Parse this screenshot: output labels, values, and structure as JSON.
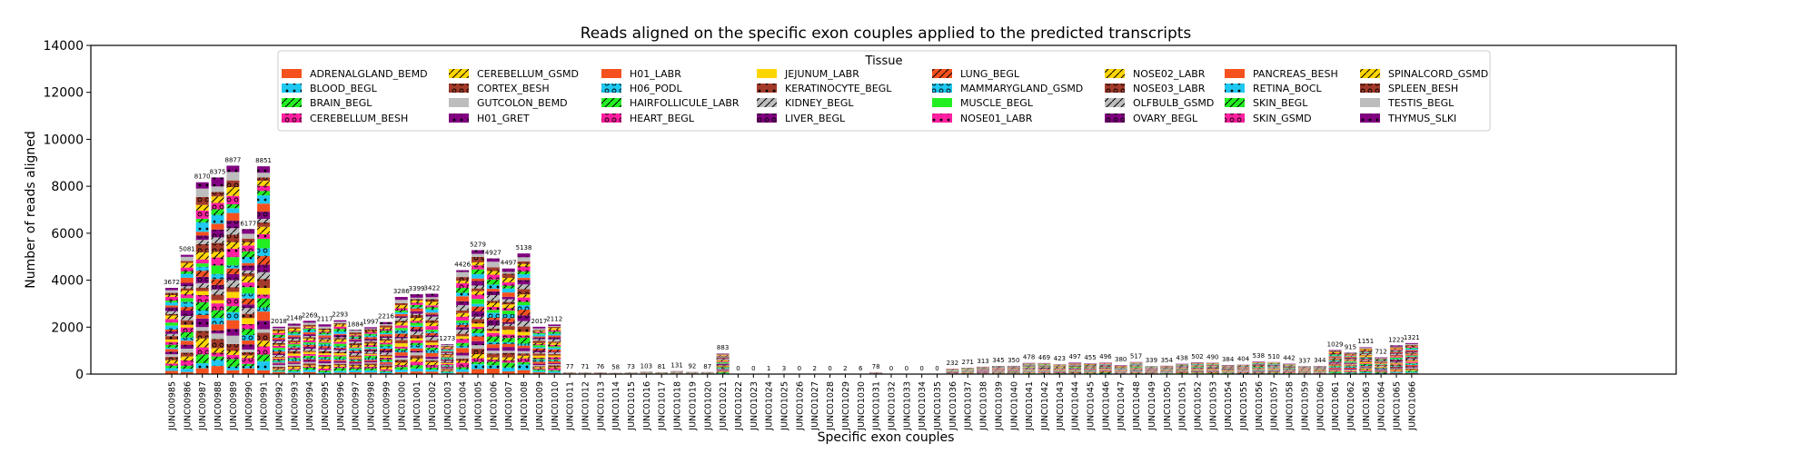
{
  "chart_data": {
    "type": "bar",
    "stacked": true,
    "title": "Reads aligned on the specific exon couples applied to the predicted transcripts",
    "xlabel": "Specific exon couples",
    "ylabel": "Number of reads aligned",
    "ylim": [
      0,
      14000
    ],
    "yticks": [
      0,
      2000,
      4000,
      6000,
      8000,
      10000,
      12000,
      14000
    ],
    "legend_title": "Tissue",
    "legend_position": "top-center",
    "categories": [
      "JUNC00985",
      "JUNC00986",
      "JUNC00987",
      "JUNC00988",
      "JUNC00989",
      "JUNC00990",
      "JUNC00991",
      "JUNC00992",
      "JUNC00993",
      "JUNC00994",
      "JUNC00995",
      "JUNC00996",
      "JUNC00997",
      "JUNC00998",
      "JUNC00999",
      "JUNC01000",
      "JUNC01001",
      "JUNC01002",
      "JUNC01003",
      "JUNC01004",
      "JUNC01005",
      "JUNC01006",
      "JUNC01007",
      "JUNC01008",
      "JUNC01009",
      "JUNC01010",
      "JUNC01011",
      "JUNC01012",
      "JUNC01013",
      "JUNC01014",
      "JUNC01015",
      "JUNC01016",
      "JUNC01017",
      "JUNC01018",
      "JUNC01019",
      "JUNC01020",
      "JUNC01021",
      "JUNC01022",
      "JUNC01023",
      "JUNC01024",
      "JUNC01025",
      "JUNC01026",
      "JUNC01027",
      "JUNC01028",
      "JUNC01029",
      "JUNC01030",
      "JUNC01031",
      "JUNC01032",
      "JUNC01033",
      "JUNC01034",
      "JUNC01035",
      "JUNC01036",
      "JUNC01037",
      "JUNC01038",
      "JUNC01039",
      "JUNC01040",
      "JUNC01041",
      "JUNC01042",
      "JUNC01043",
      "JUNC01044",
      "JUNC01045",
      "JUNC01046",
      "JUNC01047",
      "JUNC01048",
      "JUNC01049",
      "JUNC01050",
      "JUNC01051",
      "JUNC01052",
      "JUNC01053",
      "JUNC01054",
      "JUNC01055",
      "JUNC01056",
      "JUNC01057",
      "JUNC01058",
      "JUNC01059",
      "JUNC01060",
      "JUNC01061",
      "JUNC01062",
      "JUNC01063",
      "JUNC01064",
      "JUNC01065",
      "JUNC01066"
    ],
    "totals": [
      3672,
      5081,
      8170,
      8375,
      8877,
      6177,
      8851,
      2018,
      2148,
      2269,
      2117,
      2293,
      1884,
      1997,
      2216,
      3286,
      3399,
      3422,
      1273,
      4426,
      5279,
      4927,
      4497,
      5138,
      2017,
      2112,
      77,
      71,
      76,
      58,
      73,
      103,
      81,
      131,
      92,
      87,
      883,
      0,
      0,
      1,
      3,
      0,
      2,
      0,
      2,
      6,
      78,
      0,
      0,
      0,
      0,
      232,
      271,
      313,
      345,
      350,
      478,
      469,
      423,
      497,
      455,
      496,
      380,
      517,
      339,
      354,
      438,
      502,
      490,
      384,
      404,
      538,
      510,
      442,
      337,
      344,
      1029,
      915,
      1151,
      712,
      1222,
      1321
    ],
    "series": [
      {
        "name": "ADRENALGLAND_BEMD",
        "color": "#f4511e",
        "hatch": "none"
      },
      {
        "name": "BLOOD_BEGL",
        "color": "#1ec8f0",
        "hatch": "dot"
      },
      {
        "name": "BRAIN_BEGL",
        "color": "#22ee22",
        "hatch": "slash"
      },
      {
        "name": "CEREBELLUM_BESH",
        "color": "#ff1fa0",
        "hatch": "ring"
      },
      {
        "name": "CEREBELLUM_GSMD",
        "color": "#ffd500",
        "hatch": "slash"
      },
      {
        "name": "CORTEX_BESH",
        "color": "#a33a2a",
        "hatch": "ring"
      },
      {
        "name": "GUTCOLON_BEMD",
        "color": "#bdbdbd",
        "hatch": "none"
      },
      {
        "name": "H01_GRET",
        "color": "#800080",
        "hatch": "dot"
      },
      {
        "name": "H01_LABR",
        "color": "#f4511e",
        "hatch": "none"
      },
      {
        "name": "H06_PODL",
        "color": "#1ec8f0",
        "hatch": "ring"
      },
      {
        "name": "HAIRFOLLICULE_LABR",
        "color": "#22ee22",
        "hatch": "slash"
      },
      {
        "name": "HEART_BEGL",
        "color": "#ff1fa0",
        "hatch": "ring"
      },
      {
        "name": "JEJUNUM_LABR",
        "color": "#ffd500",
        "hatch": "none"
      },
      {
        "name": "KERATINOCYTE_BEGL",
        "color": "#a33a2a",
        "hatch": "dot"
      },
      {
        "name": "KIDNEY_BEGL",
        "color": "#bdbdbd",
        "hatch": "slash"
      },
      {
        "name": "LIVER_BEGL",
        "color": "#800080",
        "hatch": "ring"
      },
      {
        "name": "LUNG_BEGL",
        "color": "#f4511e",
        "hatch": "slash"
      },
      {
        "name": "MAMMARYGLAND_GSMD",
        "color": "#1ec8f0",
        "hatch": "ring"
      },
      {
        "name": "MUSCLE_BEGL",
        "color": "#22ee22",
        "hatch": "none"
      },
      {
        "name": "NOSE01_LABR",
        "color": "#ff1fa0",
        "hatch": "dot"
      },
      {
        "name": "NOSE02_LABR",
        "color": "#ffd500",
        "hatch": "slash"
      },
      {
        "name": "NOSE03_LABR",
        "color": "#a33a2a",
        "hatch": "ring"
      },
      {
        "name": "OLFBULB_GSMD",
        "color": "#bdbdbd",
        "hatch": "slash"
      },
      {
        "name": "OVARY_BEGL",
        "color": "#800080",
        "hatch": "ring"
      },
      {
        "name": "PANCREAS_BESH",
        "color": "#f4511e",
        "hatch": "none"
      },
      {
        "name": "RETINA_BOCL",
        "color": "#1ec8f0",
        "hatch": "dot"
      },
      {
        "name": "SKIN_BEGL",
        "color": "#22ee22",
        "hatch": "slash"
      },
      {
        "name": "SKIN_GSMD",
        "color": "#ff1fa0",
        "hatch": "ring"
      },
      {
        "name": "SPINALCORD_GSMD",
        "color": "#ffd500",
        "hatch": "slash"
      },
      {
        "name": "SPLEEN_BESH",
        "color": "#a33a2a",
        "hatch": "ring"
      },
      {
        "name": "TESTIS_BEGL",
        "color": "#bdbdbd",
        "hatch": "none"
      },
      {
        "name": "THYMUS_SLKI",
        "color": "#800080",
        "hatch": "dot"
      }
    ]
  }
}
